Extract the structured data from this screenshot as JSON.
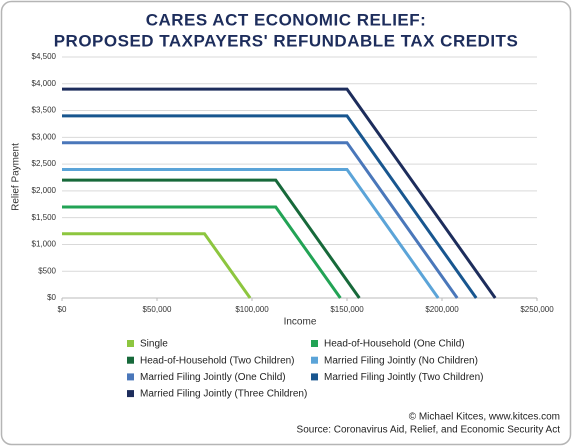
{
  "chart_data": {
    "type": "line",
    "title": "CARES ACT ECONOMIC RELIEF:",
    "subtitle": "PROPOSED TAXPAYERS' REFUNDABLE TAX CREDITS",
    "x_label": "Income",
    "y_label": "Relief Payment",
    "xlim": [
      0,
      250000
    ],
    "xticks": [
      {
        "value": 0,
        "label": "$0"
      },
      {
        "value": 50000,
        "label": "$50,000"
      },
      {
        "value": 100000,
        "label": "$100,000"
      },
      {
        "value": 150000,
        "label": "$150,000"
      },
      {
        "value": 200000,
        "label": "$200,000"
      },
      {
        "value": 250000,
        "label": "$250,000"
      }
    ],
    "ylim": [
      0,
      4500
    ],
    "yticks": [
      {
        "value": 0,
        "label": "$0"
      },
      {
        "value": 500,
        "label": "$500"
      },
      {
        "value": 1000,
        "label": "$1,000"
      },
      {
        "value": 1500,
        "label": "$1,500"
      },
      {
        "value": 2000,
        "label": "$2,000"
      },
      {
        "value": 2500,
        "label": "$2,500"
      },
      {
        "value": 3000,
        "label": "$3,000"
      },
      {
        "value": 3500,
        "label": "$3,500"
      },
      {
        "value": 4000,
        "label": "$4,000"
      },
      {
        "value": 4500,
        "label": "$4,500"
      }
    ],
    "grid": true,
    "series": [
      {
        "name": "Single",
        "color": "#8dc63f",
        "x": [
          0,
          75000,
          99000
        ],
        "values": [
          1200,
          1200,
          0
        ]
      },
      {
        "name": "Head-of-Household (One Child)",
        "color": "#22a355",
        "x": [
          0,
          112500,
          146500
        ],
        "values": [
          1700,
          1700,
          0
        ]
      },
      {
        "name": "Head-of-Household (Two Children)",
        "color": "#17693a",
        "x": [
          0,
          112500,
          156500
        ],
        "values": [
          2200,
          2200,
          0
        ]
      },
      {
        "name": "Married Filing Jointly (No Children)",
        "color": "#5ba4d8",
        "x": [
          0,
          150000,
          198000
        ],
        "values": [
          2400,
          2400,
          0
        ]
      },
      {
        "name": "Married Filing Jointly (One Child)",
        "color": "#4a77ba",
        "x": [
          0,
          150000,
          208000
        ],
        "values": [
          2900,
          2900,
          0
        ]
      },
      {
        "name": "Married Filing Jointly (Two Children)",
        "color": "#18568f",
        "x": [
          0,
          150000,
          218000
        ],
        "values": [
          3400,
          3400,
          0
        ]
      },
      {
        "name": "Married Filing Jointly (Three Children)",
        "color": "#1d2d5c",
        "x": [
          0,
          150000,
          228000
        ],
        "values": [
          3900,
          3900,
          0
        ]
      }
    ],
    "credit": "© Michael Kitces, www.kitces.com",
    "source": "Source: Coronavirus Aid, Relief, and Economic Security Act"
  }
}
